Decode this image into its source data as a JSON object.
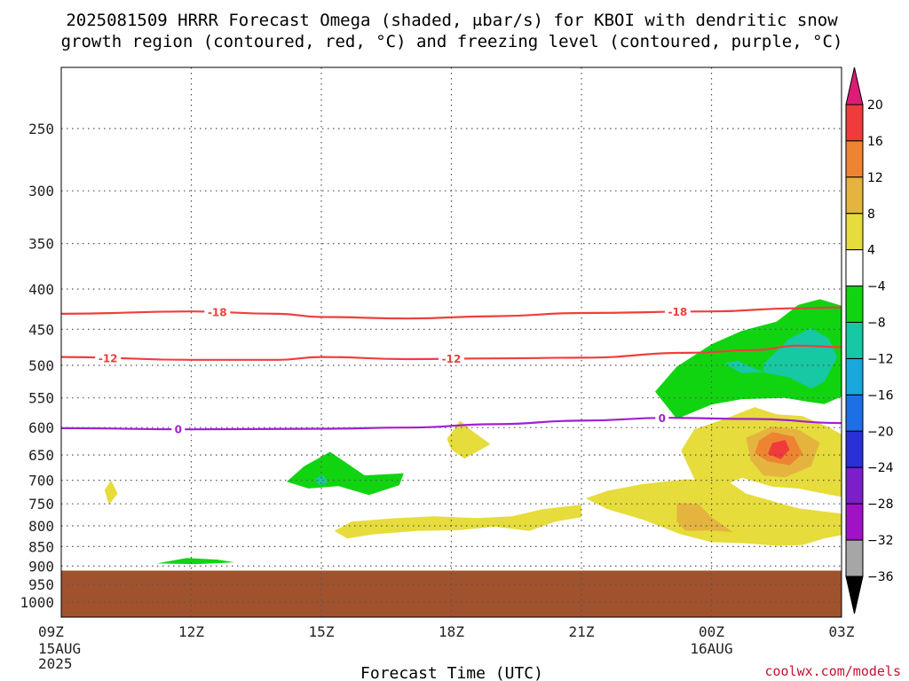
{
  "chart_data": {
    "type": "heatmap",
    "title_lines": [
      "2025081509 HRRR Forecast Omega (shaded, μbar/s) for KBOI with dendritic snow",
      "growth region (contoured, red, °C) and freezing level (contoured, purple, °C)"
    ],
    "xlabel": "Forecast Time (UTC)",
    "credit": "coolwx.com/models",
    "y_ticks": [
      250,
      300,
      350,
      400,
      450,
      500,
      550,
      600,
      650,
      700,
      750,
      800,
      850,
      900,
      950,
      1000
    ],
    "x_ticks": [
      {
        "hour": 0,
        "label": "09Z",
        "sub": [
          "15AUG",
          "2025"
        ]
      },
      {
        "hour": 3,
        "label": "12Z",
        "sub": []
      },
      {
        "hour": 6,
        "label": "15Z",
        "sub": []
      },
      {
        "hour": 9,
        "label": "18Z",
        "sub": []
      },
      {
        "hour": 12,
        "label": "21Z",
        "sub": []
      },
      {
        "hour": 15,
        "label": "00Z",
        "sub": [
          "16AUG"
        ]
      },
      {
        "hour": 18,
        "label": "03Z",
        "sub": []
      }
    ],
    "colorbar": {
      "labels": [
        "20",
        "16",
        "12",
        "8",
        "4",
        "−4",
        "−8",
        "−12",
        "−16",
        "−20",
        "−24",
        "−28",
        "−32",
        "−36"
      ],
      "bins": [
        {
          "color": "#dd1c77"
        },
        {
          "color": "#ef3b3b"
        },
        {
          "color": "#ee8431"
        },
        {
          "color": "#e5b43f"
        },
        {
          "color": "#e6dc3b"
        },
        {
          "color": "#ffffff"
        },
        {
          "color": "#11d411"
        },
        {
          "color": "#16c8a3"
        },
        {
          "color": "#19a7dc"
        },
        {
          "color": "#1d6fe6"
        },
        {
          "color": "#2a2fd6"
        },
        {
          "color": "#7a1fc9"
        },
        {
          "color": "#a112c6"
        },
        {
          "color": "#a6a6a6"
        },
        {
          "color": "#000000"
        }
      ]
    },
    "terrain_color": "#a0522d",
    "terrain_top_hpa": 912,
    "contours": [
      {
        "label": "-18",
        "color": "#ee3f3f",
        "points": [
          [
            0,
            430
          ],
          [
            3,
            427
          ],
          [
            5,
            430
          ],
          [
            6,
            434
          ],
          [
            8,
            436
          ],
          [
            10,
            433
          ],
          [
            12,
            429
          ],
          [
            15,
            427
          ],
          [
            17,
            423
          ],
          [
            18,
            422
          ]
        ],
        "labels_at": [
          0.2,
          0.79
        ]
      },
      {
        "label": "-12",
        "color": "#ee3f3f",
        "points": [
          [
            0,
            488
          ],
          [
            3,
            492
          ],
          [
            5,
            492
          ],
          [
            6,
            488
          ],
          [
            8,
            491
          ],
          [
            10,
            490
          ],
          [
            12,
            489
          ],
          [
            14.5,
            482
          ],
          [
            16,
            478
          ],
          [
            17,
            472
          ],
          [
            18,
            474
          ]
        ],
        "labels_at": [
          0.06,
          0.5
        ]
      },
      {
        "label": "0",
        "color": "#a020d0",
        "points": [
          [
            0,
            601
          ],
          [
            3,
            603
          ],
          [
            6,
            602
          ],
          [
            8,
            600
          ],
          [
            10,
            594
          ],
          [
            12,
            588
          ],
          [
            14,
            583
          ],
          [
            16,
            585
          ],
          [
            18,
            592
          ]
        ],
        "labels_at": [
          0.15,
          0.77
        ]
      }
    ],
    "shaded_regions": [
      {
        "value": -4,
        "points": [
          [
            13.7,
            540
          ],
          [
            14.2,
            502
          ],
          [
            15,
            470
          ],
          [
            15.7,
            452
          ],
          [
            16.5,
            440
          ],
          [
            17,
            419
          ],
          [
            17.5,
            412
          ],
          [
            18,
            420
          ],
          [
            18,
            548
          ],
          [
            17.6,
            560
          ],
          [
            17.2,
            556
          ],
          [
            16.7,
            550
          ],
          [
            15.7,
            552
          ],
          [
            15,
            561
          ],
          [
            14.2,
            585
          ]
        ]
      },
      {
        "value": -8,
        "points": [
          [
            16.2,
            498
          ],
          [
            16.8,
            462
          ],
          [
            17.3,
            448
          ],
          [
            17.7,
            462
          ],
          [
            17.9,
            488
          ],
          [
            17.6,
            525
          ],
          [
            17.3,
            535
          ],
          [
            16.8,
            518
          ],
          [
            16.3,
            512
          ],
          [
            16,
            505
          ],
          [
            15.6,
            493
          ],
          [
            15.3,
            497
          ],
          [
            15.7,
            512
          ],
          [
            16.2,
            510
          ]
        ]
      },
      {
        "value": 4,
        "points": [
          [
            14.3,
            642
          ],
          [
            14.6,
            603
          ],
          [
            15.3,
            585
          ],
          [
            16,
            565
          ],
          [
            16.5,
            577
          ],
          [
            17.1,
            580
          ],
          [
            17.7,
            599
          ],
          [
            18,
            612
          ],
          [
            18,
            735
          ],
          [
            17.5,
            726
          ],
          [
            17,
            717
          ],
          [
            16.4,
            713
          ],
          [
            15.7,
            695
          ],
          [
            15.1,
            718
          ],
          [
            14.7,
            715
          ]
        ]
      },
      {
        "value": 8,
        "points": [
          [
            15.8,
            618
          ],
          [
            16.4,
            598
          ],
          [
            17,
            603
          ],
          [
            17.5,
            627
          ],
          [
            17.3,
            672
          ],
          [
            16.7,
            694
          ],
          [
            16.2,
            690
          ],
          [
            15.9,
            660
          ]
        ]
      },
      {
        "value": 12,
        "points": [
          [
            16.1,
            623
          ],
          [
            16.4,
            608
          ],
          [
            16.9,
            616
          ],
          [
            17.1,
            648
          ],
          [
            16.8,
            670
          ],
          [
            16.3,
            662
          ],
          [
            16,
            647
          ]
        ]
      },
      {
        "value": 16,
        "points": [
          [
            16.4,
            628
          ],
          [
            16.7,
            622
          ],
          [
            16.8,
            640
          ],
          [
            16.6,
            658
          ],
          [
            16.3,
            648
          ]
        ]
      },
      {
        "value": 4,
        "points": [
          [
            12.1,
            738
          ],
          [
            12.6,
            722
          ],
          [
            13.4,
            708
          ],
          [
            14.4,
            698
          ],
          [
            15.4,
            703
          ],
          [
            15.8,
            728
          ],
          [
            17,
            760
          ],
          [
            18,
            772
          ],
          [
            18,
            822
          ],
          [
            17.6,
            830
          ],
          [
            17.1,
            846
          ],
          [
            16.5,
            848
          ],
          [
            15.8,
            842
          ],
          [
            15,
            839
          ],
          [
            14.3,
            820
          ],
          [
            13.4,
            785
          ],
          [
            12.6,
            762
          ]
        ]
      },
      {
        "value": 8,
        "points": [
          [
            14.2,
            748
          ],
          [
            14.7,
            750
          ],
          [
            15,
            780
          ],
          [
            15.5,
            815
          ],
          [
            15,
            811
          ],
          [
            14.4,
            812
          ],
          [
            14.2,
            790
          ]
        ]
      },
      {
        "value": -4,
        "points": [
          [
            5.2,
            703
          ],
          [
            5.6,
            672
          ],
          [
            6.2,
            644
          ],
          [
            7,
            690
          ],
          [
            7.9,
            686
          ],
          [
            7.8,
            710
          ],
          [
            7.1,
            731
          ],
          [
            6.4,
            712
          ],
          [
            5.7,
            717
          ]
        ]
      },
      {
        "value": -8,
        "points": [
          [
            5.85,
            696
          ],
          [
            6.05,
            690
          ],
          [
            6.15,
            704
          ],
          [
            5.95,
            711
          ]
        ]
      },
      {
        "value": 4,
        "points": [
          [
            1,
            720
          ],
          [
            1.15,
            700
          ],
          [
            1.3,
            728
          ],
          [
            1.1,
            752
          ]
        ]
      },
      {
        "value": 4,
        "points": [
          [
            8.9,
            620
          ],
          [
            9.2,
            588
          ],
          [
            9.5,
            607
          ],
          [
            9.9,
            630
          ],
          [
            9.3,
            657
          ],
          [
            9,
            640
          ]
        ]
      },
      {
        "value": 4,
        "points": [
          [
            6.3,
            812
          ],
          [
            6.7,
            790
          ],
          [
            7.6,
            783
          ],
          [
            8.6,
            778
          ],
          [
            9.6,
            782
          ],
          [
            10.4,
            778
          ],
          [
            11.1,
            762
          ],
          [
            12,
            752
          ],
          [
            12,
            780
          ],
          [
            11.4,
            790
          ],
          [
            10.8,
            812
          ],
          [
            10,
            802
          ],
          [
            9.2,
            810
          ],
          [
            8.2,
            812
          ],
          [
            7.2,
            820
          ],
          [
            6.6,
            830
          ]
        ]
      },
      {
        "value": -4,
        "points": [
          [
            2.2,
            893
          ],
          [
            2.9,
            879
          ],
          [
            3.6,
            883
          ],
          [
            4,
            890
          ],
          [
            3.1,
            895
          ]
        ]
      }
    ]
  }
}
